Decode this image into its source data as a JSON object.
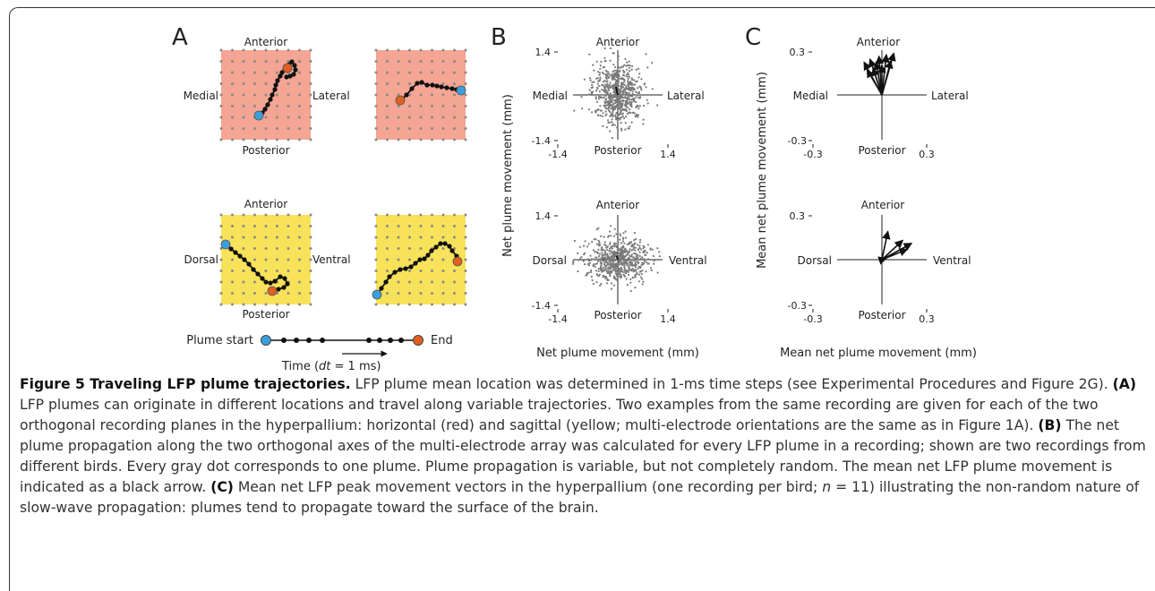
{
  "panelA": {
    "letter": "A",
    "horizontal": {
      "top": "Anterior",
      "bottom": "Posterior",
      "left": "Medial",
      "right": "Lateral",
      "color": "#f4a593"
    },
    "sagittal": {
      "top": "Anterior",
      "bottom": "Posterior",
      "left": "Dorsal",
      "right": "Ventral",
      "color": "#f8e25a"
    },
    "legend": {
      "start": "Plume start",
      "end": "End",
      "time_pre": "Time (",
      "time_dt": "dt",
      "time_post": " = 1 ms)"
    },
    "start_color": "#3aa0dc",
    "end_color": "#e06020"
  },
  "panelB": {
    "letter": "B",
    "ylabel": "Net plume movement (mm)",
    "xlabel": "Net plume movement (mm)",
    "top_plot": {
      "top": "Anterior",
      "bottom": "Posterior",
      "left": "Medial",
      "right": "Lateral",
      "ytick_max": "1.4",
      "ytick_min": "-1.4",
      "xtick_min": "-1.4",
      "xtick_max": "1.4"
    },
    "bottom_plot": {
      "top": "Anterior",
      "bottom": "Posterior",
      "left": "Dorsal",
      "right": "Ventral",
      "ytick_max": "1.4",
      "ytick_min": "-1.4",
      "xtick_min": "-1.4",
      "xtick_max": "1.4"
    }
  },
  "panelC": {
    "letter": "C",
    "ylabel": "Mean net plume movement (mm)",
    "xlabel": "Mean net plume movement (mm)",
    "top_plot": {
      "top": "Anterior",
      "bottom": "Posterior",
      "left": "Medial",
      "right": "Lateral",
      "ytick_max": "0.3",
      "ytick_min": "-0.3",
      "xtick_min": "-0.3",
      "xtick_max": "0.3"
    },
    "bottom_plot": {
      "top": "Anterior",
      "bottom": "Posterior",
      "left": "Dorsal",
      "right": "Ventral",
      "ytick_max": "0.3",
      "ytick_min": "-0.3",
      "xtick_min": "-0.3",
      "xtick_max": "0.3"
    }
  },
  "chart_data": [
    {
      "type": "scatter",
      "panel": "B-top",
      "xlabel": "Net plume movement (mm)",
      "ylabel": "Net plume movement (mm)",
      "xlim": [
        -1.4,
        1.4
      ],
      "ylim": [
        -1.4,
        1.4
      ],
      "series": [
        {
          "point_color": "#7a7a7a"
        }
      ],
      "mean_arrow": {
        "x": -0.08,
        "y": 0.25
      }
    },
    {
      "type": "scatter",
      "panel": "B-bottom",
      "xlabel": "Net plume movement (mm)",
      "ylabel": "Net plume movement (mm)",
      "xlim": [
        -1.4,
        1.4
      ],
      "ylim": [
        -1.4,
        1.4
      ],
      "series": [
        {
          "point_color": "#7a7a7a"
        }
      ],
      "mean_arrow": {
        "x": -0.05,
        "y": 0.12
      }
    },
    {
      "type": "line",
      "panel": "C-top",
      "xlim": [
        -0.3,
        0.3
      ],
      "ylim": [
        -0.3,
        0.3
      ],
      "vectors": [
        [
          -0.12,
          0.22
        ],
        [
          -0.08,
          0.24
        ],
        [
          -0.06,
          0.18
        ],
        [
          -0.02,
          0.26
        ],
        [
          0.0,
          0.2
        ],
        [
          0.03,
          0.27
        ],
        [
          0.06,
          0.23
        ],
        [
          -0.1,
          0.17
        ],
        [
          0.08,
          0.28
        ],
        [
          -0.04,
          0.22
        ]
      ]
    },
    {
      "type": "line",
      "panel": "C-bottom",
      "xlim": [
        -0.3,
        0.3
      ],
      "ylim": [
        -0.3,
        0.3
      ],
      "vectors": [
        [
          0.04,
          0.19
        ],
        [
          0.14,
          0.13
        ],
        [
          0.2,
          0.11
        ],
        [
          0.17,
          0.07
        ],
        [
          0.03,
          0.01
        ]
      ]
    }
  ],
  "caption": {
    "title": "Figure 5 Traveling LFP plume trajectories.",
    "intro": " LFP plume mean location was determined in 1-ms time steps (see Experimental Procedures and Figure 2G). ",
    "a_label": "(A)",
    "a_text": " LFP plumes can originate in different locations and travel along variable trajectories. Two examples from the same recording are given for each of the two orthogonal recording planes in the hyperpallium: horizontal (red) and sagittal (yellow; multi-electrode orientations are the same as in Figure 1A). ",
    "b_label": "(B)",
    "b_text": " The net plume propagation along the two orthogonal axes of the multi-electrode array was calculated for every LFP plume in a recording; shown are two recordings from different birds. Every gray dot corresponds to one plume. Plume propagation is variable, but not completely random. The mean net LFP plume movement is indicated as a black arrow. ",
    "c_label": "(C)",
    "c_text_pre": " Mean net LFP peak movement vectors in the hyperpallium (one recording per bird; ",
    "c_n": "n",
    "c_text_post": " = 11) illustrating the non-random nature of slow-wave propagation: plumes tend to propagate toward the surface of the brain."
  }
}
